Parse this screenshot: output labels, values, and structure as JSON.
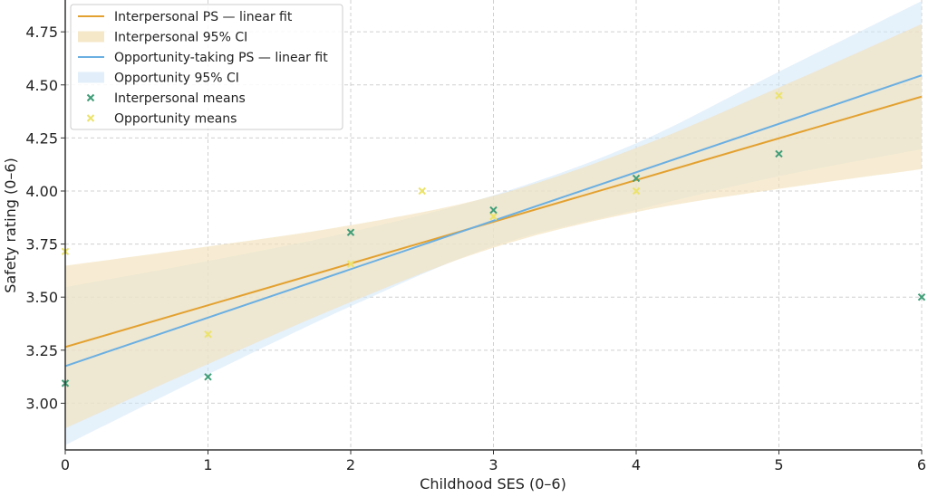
{
  "chart_data": {
    "type": "line",
    "title": "",
    "xlabel": "Childhood SES (0–6)",
    "ylabel": "Safety rating (0–6)",
    "xlim": [
      0,
      6
    ],
    "ylim": [
      2.78,
      4.9
    ],
    "xticks": [
      0,
      1,
      2,
      3,
      4,
      5,
      6
    ],
    "yticks": [
      3.0,
      3.25,
      3.5,
      3.75,
      4.0,
      4.25,
      4.5,
      4.75
    ],
    "grid": true,
    "legend_position": "top-left",
    "colors": {
      "interpersonal_line": "#e3a12f",
      "interpersonal_band": "#f3e2bb",
      "opportunity_line": "#6aafe2",
      "opportunity_band": "#cfe5f7",
      "interpersonal_means": "#3f9e78",
      "opportunity_means": "#ece36a"
    },
    "bands": [
      {
        "name": "Interpersonal 95% CI",
        "x": [
          0,
          1,
          2,
          3,
          4,
          5,
          6
        ],
        "lower": [
          2.882,
          3.185,
          3.477,
          3.733,
          3.901,
          4.01,
          4.103
        ],
        "upper": [
          3.648,
          3.739,
          3.839,
          3.977,
          4.203,
          4.488,
          4.787
        ]
      },
      {
        "name": "Opportunity 95% CI",
        "x": [
          0,
          1,
          2,
          3,
          4,
          5,
          6
        ],
        "lower": [
          2.803,
          3.136,
          3.457,
          3.74,
          3.911,
          4.07,
          4.197
        ],
        "upper": [
          3.547,
          3.67,
          3.807,
          3.98,
          4.225,
          4.562,
          4.895
        ]
      }
    ],
    "lines": [
      {
        "name": "Interpersonal PS — linear fit",
        "x": [
          0,
          6
        ],
        "y": [
          3.265,
          4.445
        ]
      },
      {
        "name": "Opportunity-taking PS — linear fit",
        "x": [
          0,
          6
        ],
        "y": [
          3.175,
          4.545
        ]
      }
    ],
    "scatter": [
      {
        "name": "Interpersonal means",
        "x": [
          0,
          1,
          2,
          3,
          4,
          5,
          6
        ],
        "y": [
          3.094,
          3.124,
          3.805,
          3.91,
          4.06,
          4.175,
          3.5
        ]
      },
      {
        "name": "Opportunity means",
        "x": [
          0,
          1,
          2,
          2.5,
          3,
          4,
          5
        ],
        "y": [
          3.715,
          3.325,
          3.656,
          4.0,
          3.88,
          4.0,
          4.45
        ]
      }
    ],
    "legend": [
      "Interpersonal PS — linear fit",
      "Interpersonal 95% CI",
      "Opportunity-taking PS — linear fit",
      "Opportunity 95% CI",
      "Interpersonal means",
      "Opportunity means"
    ]
  }
}
